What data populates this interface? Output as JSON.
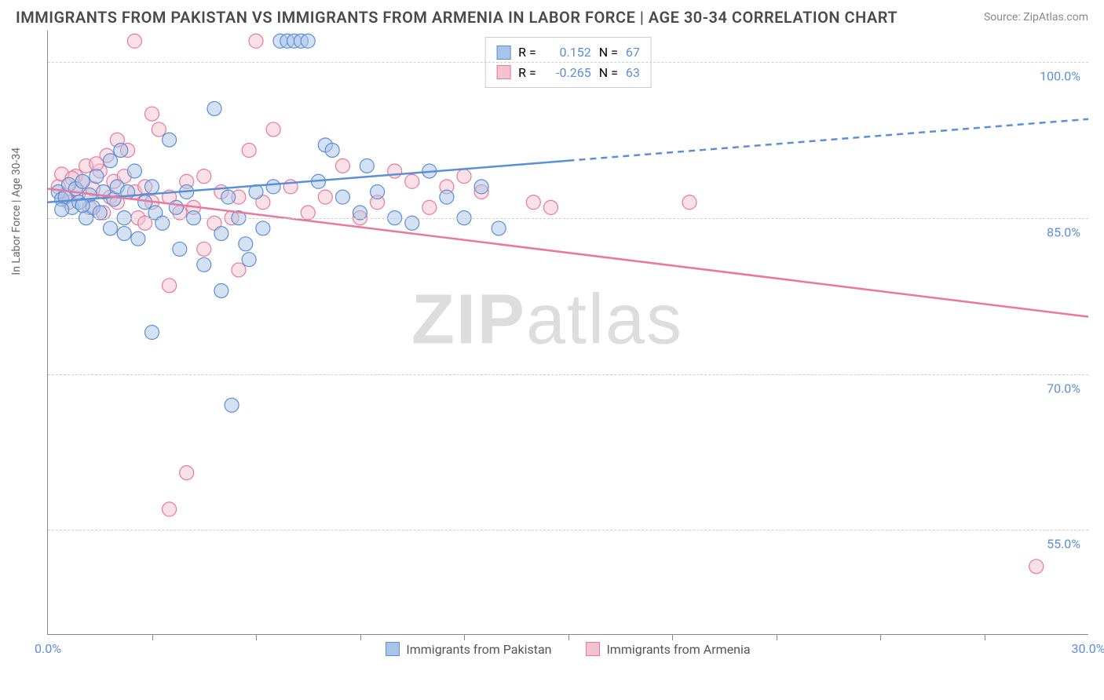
{
  "header": {
    "title": "IMMIGRANTS FROM PAKISTAN VS IMMIGRANTS FROM ARMENIA IN LABOR FORCE | AGE 30-34 CORRELATION CHART",
    "source": "Source: ZipAtlas.com"
  },
  "watermark": {
    "prefix": "ZIP",
    "suffix": "atlas"
  },
  "chart": {
    "type": "scatter-correlation",
    "y_axis_label": "In Labor Force | Age 30-34",
    "xlim": [
      0.0,
      30.0
    ],
    "ylim": [
      45.0,
      103.0
    ],
    "x_ticks": [
      0.0,
      30.0
    ],
    "x_tick_labels": [
      "0.0%",
      "30.0%"
    ],
    "x_minor_ticks": [
      3,
      6,
      9,
      12,
      15,
      18,
      21,
      24,
      27
    ],
    "y_ticks": [
      55.0,
      70.0,
      85.0,
      100.0
    ],
    "y_tick_labels": [
      "55.0%",
      "70.0%",
      "85.0%",
      "100.0%"
    ],
    "grid_color": "#d0d0d0",
    "axis_color": "#888888",
    "background_color": "#ffffff",
    "marker_radius": 9,
    "marker_opacity": 0.5,
    "marker_stroke_width": 1.2,
    "trend_line_width": 2.5,
    "series": [
      {
        "name": "Immigrants from Pakistan",
        "color_fill": "#a9c4e8",
        "color_stroke": "#5b8fd6",
        "r_value": "0.152",
        "n_value": "67",
        "trend": {
          "x1": 0,
          "y1": 86.5,
          "x2": 15,
          "y2": 90.5,
          "x2_ext": 30,
          "y2_ext": 94.5
        },
        "points": [
          [
            0.3,
            87.5
          ],
          [
            0.4,
            86.8
          ],
          [
            0.5,
            87.0
          ],
          [
            0.6,
            88.2
          ],
          [
            0.7,
            86.0
          ],
          [
            0.8,
            87.8
          ],
          [
            0.9,
            86.5
          ],
          [
            1.0,
            88.5
          ],
          [
            1.1,
            85.0
          ],
          [
            1.2,
            87.2
          ],
          [
            1.3,
            86.0
          ],
          [
            1.4,
            89.0
          ],
          [
            1.5,
            85.5
          ],
          [
            1.6,
            87.5
          ],
          [
            1.8,
            90.5
          ],
          [
            1.9,
            86.8
          ],
          [
            2.0,
            88.0
          ],
          [
            2.1,
            91.5
          ],
          [
            2.2,
            85.0
          ],
          [
            2.3,
            87.5
          ],
          [
            2.5,
            89.5
          ],
          [
            2.6,
            83.0
          ],
          [
            2.8,
            86.5
          ],
          [
            3.0,
            88.0
          ],
          [
            3.1,
            85.5
          ],
          [
            3.3,
            84.5
          ],
          [
            3.5,
            92.5
          ],
          [
            3.7,
            86.0
          ],
          [
            3.8,
            82.0
          ],
          [
            4.0,
            87.5
          ],
          [
            4.2,
            85.0
          ],
          [
            4.5,
            80.5
          ],
          [
            4.8,
            95.5
          ],
          [
            5.0,
            83.5
          ],
          [
            5.2,
            87.0
          ],
          [
            5.5,
            85.0
          ],
          [
            5.7,
            82.5
          ],
          [
            5.8,
            81.0
          ],
          [
            6.0,
            87.5
          ],
          [
            6.2,
            84.0
          ],
          [
            6.5,
            88.0
          ],
          [
            6.7,
            102.0
          ],
          [
            6.9,
            102.0
          ],
          [
            7.1,
            102.0
          ],
          [
            7.3,
            102.0
          ],
          [
            7.5,
            102.0
          ],
          [
            7.8,
            88.5
          ],
          [
            8.0,
            92.0
          ],
          [
            8.2,
            91.5
          ],
          [
            8.5,
            87.0
          ],
          [
            9.0,
            85.5
          ],
          [
            9.2,
            90.0
          ],
          [
            9.5,
            87.5
          ],
          [
            10.0,
            85.0
          ],
          [
            10.5,
            84.5
          ],
          [
            11.0,
            89.5
          ],
          [
            11.5,
            87.0
          ],
          [
            12.0,
            85.0
          ],
          [
            12.5,
            88.0
          ],
          [
            13.0,
            84.0
          ],
          [
            5.0,
            78.0
          ],
          [
            5.3,
            67.0
          ],
          [
            3.0,
            74.0
          ],
          [
            1.8,
            84.0
          ],
          [
            2.2,
            83.5
          ],
          [
            0.4,
            85.8
          ],
          [
            1.0,
            86.2
          ]
        ]
      },
      {
        "name": "Immigrants from Armenia",
        "color_fill": "#f5c2d0",
        "color_stroke": "#e8789f",
        "r_value": "-0.265",
        "n_value": "63",
        "trend": {
          "x1": 0,
          "y1": 87.8,
          "x2": 30,
          "y2": 75.5,
          "x2_ext": null,
          "y2_ext": null
        },
        "points": [
          [
            0.3,
            88.0
          ],
          [
            0.5,
            87.2
          ],
          [
            0.6,
            86.5
          ],
          [
            0.8,
            89.0
          ],
          [
            0.9,
            87.5
          ],
          [
            1.0,
            88.5
          ],
          [
            1.1,
            90.0
          ],
          [
            1.2,
            86.0
          ],
          [
            1.3,
            87.8
          ],
          [
            1.5,
            89.5
          ],
          [
            1.6,
            85.5
          ],
          [
            1.7,
            91.0
          ],
          [
            1.8,
            87.0
          ],
          [
            1.9,
            88.5
          ],
          [
            2.0,
            86.5
          ],
          [
            2.2,
            89.0
          ],
          [
            2.3,
            91.5
          ],
          [
            2.5,
            87.5
          ],
          [
            2.6,
            85.0
          ],
          [
            2.8,
            88.0
          ],
          [
            3.0,
            86.5
          ],
          [
            3.2,
            93.5
          ],
          [
            3.5,
            87.0
          ],
          [
            3.8,
            85.5
          ],
          [
            4.0,
            88.5
          ],
          [
            4.2,
            86.0
          ],
          [
            4.5,
            89.0
          ],
          [
            4.8,
            84.5
          ],
          [
            5.0,
            87.5
          ],
          [
            5.3,
            85.0
          ],
          [
            5.5,
            87.0
          ],
          [
            5.8,
            91.5
          ],
          [
            6.0,
            102.0
          ],
          [
            6.2,
            86.5
          ],
          [
            6.5,
            93.5
          ],
          [
            7.0,
            88.0
          ],
          [
            7.5,
            85.5
          ],
          [
            8.0,
            87.0
          ],
          [
            8.5,
            90.0
          ],
          [
            9.0,
            85.0
          ],
          [
            9.5,
            86.5
          ],
          [
            10.0,
            89.5
          ],
          [
            10.5,
            88.5
          ],
          [
            11.0,
            86.0
          ],
          [
            11.5,
            88.0
          ],
          [
            12.0,
            89.0
          ],
          [
            12.5,
            87.5
          ],
          [
            14.0,
            86.5
          ],
          [
            14.5,
            86.0
          ],
          [
            18.5,
            86.5
          ],
          [
            2.5,
            102.0
          ],
          [
            3.0,
            95.0
          ],
          [
            4.5,
            82.0
          ],
          [
            5.5,
            80.0
          ],
          [
            2.8,
            84.5
          ],
          [
            3.5,
            78.5
          ],
          [
            4.0,
            60.5
          ],
          [
            3.5,
            57.0
          ],
          [
            28.5,
            51.5
          ],
          [
            0.4,
            89.2
          ],
          [
            0.7,
            88.8
          ],
          [
            1.4,
            90.2
          ],
          [
            2.0,
            92.5
          ]
        ]
      }
    ],
    "legend_top": {
      "r_label": "R =",
      "n_label": "N ="
    },
    "legend_bottom_labels": [
      "Immigrants from Pakistan",
      "Immigrants from Armenia"
    ]
  }
}
